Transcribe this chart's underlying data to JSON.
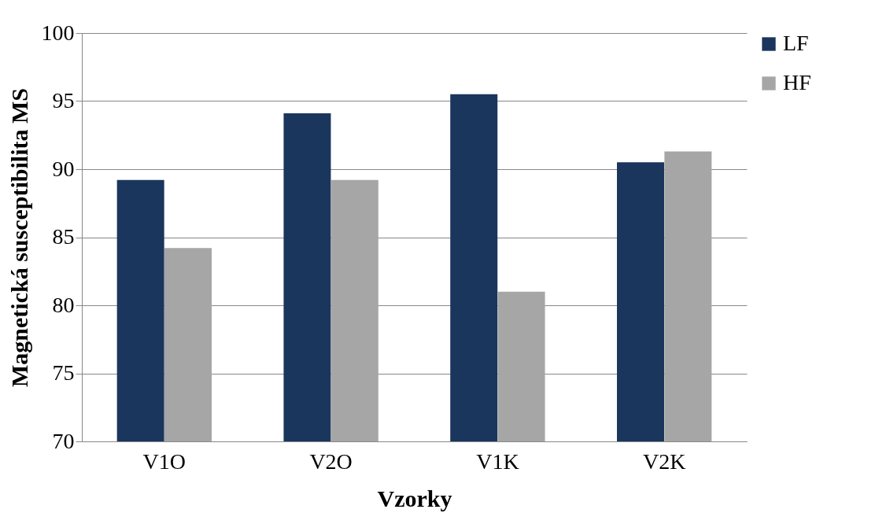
{
  "chart_data": {
    "type": "bar",
    "xlabel": "Vzorky",
    "ylabel": "Magnetická susceptibilita MS",
    "categories": [
      "V1O",
      "V2O",
      "V1K",
      "V2K"
    ],
    "series": [
      {
        "name": "LF",
        "color": "#1a365d",
        "values": [
          89.2,
          94.1,
          95.5,
          90.5
        ]
      },
      {
        "name": "HF",
        "color": "#a6a6a6",
        "values": [
          84.2,
          89.2,
          81.0,
          91.3
        ]
      }
    ],
    "ylim": [
      70,
      100
    ],
    "yticks": [
      70,
      75,
      80,
      85,
      90,
      95,
      100
    ],
    "grid": "y",
    "legend": "right"
  }
}
